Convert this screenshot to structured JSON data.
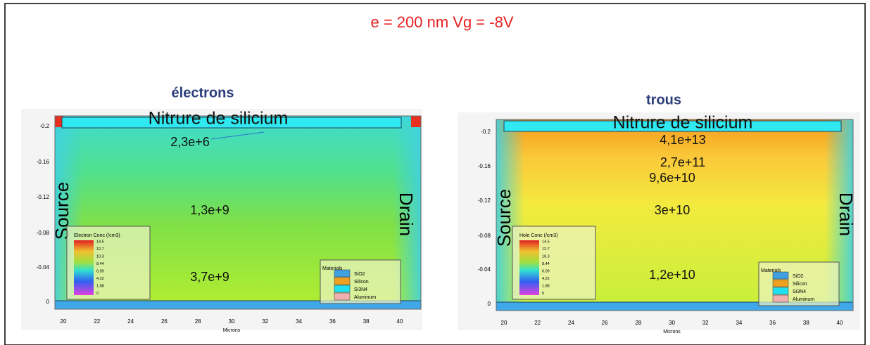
{
  "title": "e = 200 nm  Vg = -8V",
  "panels": [
    {
      "heading": "électrons",
      "layer": "Nitrure de silicium",
      "source": "Source",
      "drain": "Drain",
      "annotations": [
        "2,3e+6",
        "1,3e+9",
        "3,7e+9"
      ],
      "x_ticks": [
        "20",
        "22",
        "24",
        "26",
        "28",
        "30",
        "32",
        "34",
        "36",
        "38",
        "40"
      ],
      "y_ticks": [
        "-0.2",
        "-0.16",
        "-0.12",
        "-0.08",
        "-0.04",
        "0"
      ],
      "x_label": "Microns",
      "legend": {
        "title": "Electron Conc (/cm3)",
        "levels": [
          "14.5",
          "12.7",
          "10.3",
          "8.44",
          "6.09",
          "4.22",
          "1.88",
          "0"
        ]
      },
      "materials": {
        "title": "Materials",
        "items": [
          "SiO2",
          "Silicon",
          "Si3N4",
          "Aluminum"
        ]
      }
    },
    {
      "heading": "trous",
      "layer": "Nitrure de silicium",
      "source": "Source",
      "drain": "Drain",
      "annotations": [
        "4,1e+13",
        "2,7e+11",
        "9,6e+10",
        "3e+10",
        "1,2e+10"
      ],
      "x_ticks": [
        "20",
        "22",
        "24",
        "26",
        "28",
        "30",
        "32",
        "34",
        "36",
        "38",
        "40"
      ],
      "y_ticks": [
        "-0.2",
        "-0.16",
        "-0.12",
        "-0.08",
        "-0.04",
        "0"
      ],
      "x_label": "Microns",
      "legend": {
        "title": "Hole Conc (/cm3)",
        "levels": [
          "14.5",
          "12.7",
          "10.3",
          "8.44",
          "6.09",
          "4.22",
          "1.88",
          "0"
        ]
      },
      "materials": {
        "title": "Materials",
        "items": [
          "SiO2",
          "Silicon",
          "Si3N4",
          "Aluminum"
        ]
      }
    }
  ]
}
